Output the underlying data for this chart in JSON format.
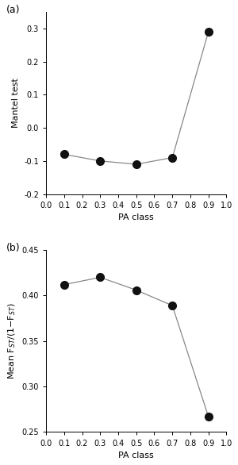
{
  "panel_a": {
    "label": "(a)",
    "x": [
      0.1,
      0.3,
      0.5,
      0.7,
      0.9
    ],
    "y": [
      -0.08,
      -0.1,
      -0.11,
      -0.09,
      0.29
    ],
    "xlabel": "PA class",
    "ylabel": "Mantel test",
    "xlim": [
      0.0,
      1.0
    ],
    "ylim": [
      -0.2,
      0.35
    ],
    "xticks": [
      0.0,
      0.1,
      0.2,
      0.3,
      0.4,
      0.5,
      0.6,
      0.7,
      0.8,
      0.9,
      1.0
    ],
    "yticks": [
      -0.2,
      -0.1,
      0.0,
      0.1,
      0.2,
      0.3
    ]
  },
  "panel_b": {
    "label": "(b)",
    "x": [
      0.1,
      0.3,
      0.5,
      0.7,
      0.9
    ],
    "y": [
      0.412,
      0.42,
      0.406,
      0.389,
      0.267
    ],
    "xlabel": "PA class",
    "ylabel": "Mean F$_{ST}$/(1−F$_{ST}$)",
    "xlim": [
      0.0,
      1.0
    ],
    "ylim": [
      0.25,
      0.45
    ],
    "xticks": [
      0.0,
      0.1,
      0.2,
      0.3,
      0.4,
      0.5,
      0.6,
      0.7,
      0.8,
      0.9,
      1.0
    ],
    "yticks": [
      0.25,
      0.3,
      0.35,
      0.4,
      0.45
    ]
  },
  "line_color": "#888888",
  "marker_color": "#111111",
  "marker_size": 7,
  "fontsize_label": 8,
  "fontsize_tick": 7,
  "fontsize_panel": 9
}
